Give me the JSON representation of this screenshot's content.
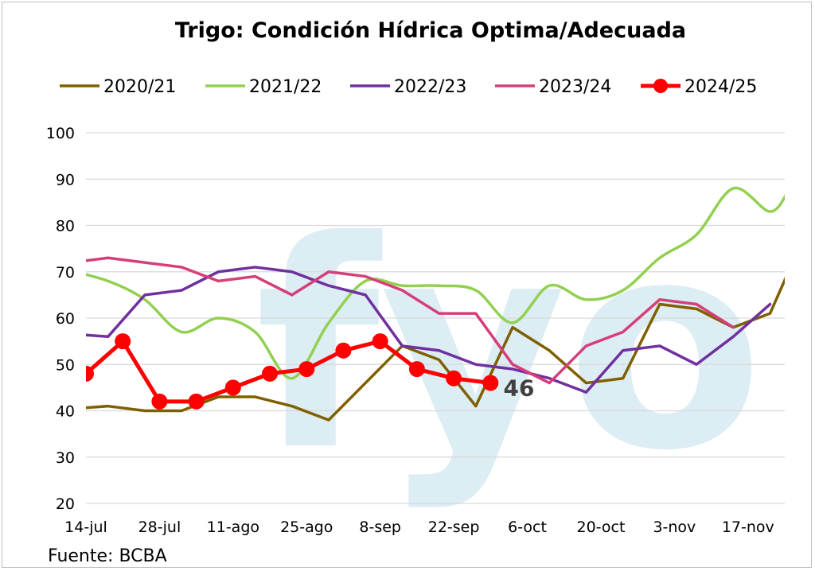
{
  "chart_data": {
    "type": "line",
    "title": "Trigo: Condición Hídrica Optima/Adecuada",
    "source": "Fuente: BCBA",
    "watermark": "fyo",
    "ylim": [
      20,
      100
    ],
    "yticks": [
      20,
      30,
      40,
      50,
      60,
      70,
      80,
      90,
      100
    ],
    "xlim": [
      0,
      19
    ],
    "xticks": [
      {
        "x": 0,
        "label": "14-jul"
      },
      {
        "x": 2,
        "label": "28-jul"
      },
      {
        "x": 4,
        "label": "11-ago"
      },
      {
        "x": 6,
        "label": "25-ago"
      },
      {
        "x": 8,
        "label": "8-sep"
      },
      {
        "x": 10,
        "label": "22-sep"
      },
      {
        "x": 12,
        "label": "6-oct"
      },
      {
        "x": 14,
        "label": "20-oct"
      },
      {
        "x": 16,
        "label": "3-nov"
      },
      {
        "x": 18,
        "label": "17-nov"
      }
    ],
    "grid": true,
    "legend": "top",
    "series": [
      {
        "name": "2020/21",
        "color": "#7f6000",
        "smooth": false,
        "markers": false,
        "points": [
          [
            -0.6,
            40.3
          ],
          [
            0.6,
            41
          ],
          [
            1.6,
            40
          ],
          [
            2.6,
            40
          ],
          [
            3.6,
            43
          ],
          [
            4.6,
            43
          ],
          [
            5.6,
            41
          ],
          [
            6.6,
            38
          ],
          [
            7.6,
            46
          ],
          [
            8.6,
            54
          ],
          [
            9.6,
            51
          ],
          [
            10.6,
            41
          ],
          [
            11.6,
            58
          ],
          [
            12.6,
            53
          ],
          [
            13.6,
            46
          ],
          [
            14.6,
            47
          ],
          [
            15.6,
            63
          ],
          [
            16.6,
            62
          ],
          [
            17.6,
            58
          ],
          [
            18.6,
            61
          ],
          [
            19.1,
            70
          ]
        ]
      },
      {
        "name": "2021/22",
        "color": "#92d050",
        "smooth": true,
        "markers": false,
        "points": [
          [
            -0.6,
            70.6
          ],
          [
            0.6,
            68
          ],
          [
            1.6,
            64
          ],
          [
            2.6,
            57
          ],
          [
            3.6,
            60
          ],
          [
            4.6,
            57
          ],
          [
            5.6,
            47
          ],
          [
            6.6,
            59
          ],
          [
            7.6,
            68
          ],
          [
            8.6,
            67
          ],
          [
            9.6,
            67
          ],
          [
            10.6,
            66
          ],
          [
            11.6,
            59
          ],
          [
            12.6,
            67
          ],
          [
            13.6,
            64
          ],
          [
            14.6,
            66
          ],
          [
            15.6,
            73
          ],
          [
            16.6,
            78
          ],
          [
            17.6,
            88
          ],
          [
            18.6,
            83
          ],
          [
            19.1,
            87.5
          ]
        ]
      },
      {
        "name": "2022/23",
        "color": "#7030a0",
        "smooth": false,
        "markers": false,
        "points": [
          [
            -0.6,
            56.7
          ],
          [
            0.6,
            56
          ],
          [
            1.6,
            65
          ],
          [
            2.6,
            66
          ],
          [
            3.6,
            70
          ],
          [
            4.6,
            71
          ],
          [
            5.6,
            70
          ],
          [
            6.6,
            67
          ],
          [
            7.6,
            65
          ],
          [
            8.6,
            54
          ],
          [
            9.6,
            53
          ],
          [
            10.6,
            50
          ],
          [
            11.6,
            49
          ],
          [
            12.6,
            47
          ],
          [
            13.6,
            44
          ],
          [
            14.6,
            53
          ],
          [
            15.6,
            54
          ],
          [
            16.6,
            50
          ],
          [
            17.6,
            56
          ],
          [
            18.6,
            63
          ]
        ]
      },
      {
        "name": "2023/24",
        "color": "#d63e7a",
        "smooth": false,
        "markers": false,
        "points": [
          [
            -0.6,
            71.8
          ],
          [
            0.6,
            73
          ],
          [
            1.6,
            72
          ],
          [
            2.6,
            71
          ],
          [
            3.6,
            68
          ],
          [
            4.6,
            69
          ],
          [
            5.6,
            65
          ],
          [
            6.6,
            70
          ],
          [
            7.6,
            69
          ],
          [
            8.6,
            66
          ],
          [
            9.6,
            61
          ],
          [
            10.6,
            61
          ],
          [
            11.6,
            50
          ],
          [
            12.6,
            46
          ],
          [
            13.6,
            54
          ],
          [
            14.6,
            57
          ],
          [
            15.6,
            64
          ],
          [
            16.6,
            63
          ],
          [
            17.6,
            58
          ]
        ]
      },
      {
        "name": "2024/25",
        "color": "#ff0000",
        "smooth": false,
        "markers": true,
        "points": [
          [
            0,
            48
          ],
          [
            1,
            55
          ],
          [
            2,
            42
          ],
          [
            3,
            42
          ],
          [
            4,
            45
          ],
          [
            5,
            48
          ],
          [
            6,
            49
          ],
          [
            7,
            53
          ],
          [
            8,
            55
          ],
          [
            9,
            49
          ],
          [
            10,
            47
          ],
          [
            11,
            46
          ]
        ]
      }
    ],
    "annotation": {
      "text": "46",
      "x": 11.35,
      "y": 45
    }
  }
}
